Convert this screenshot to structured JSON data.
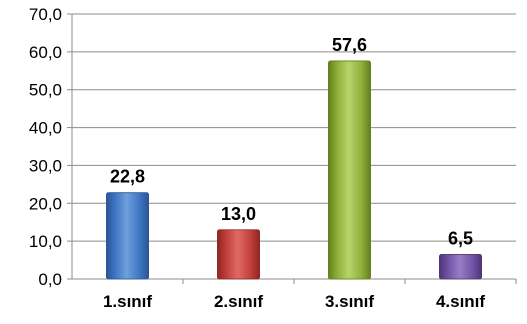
{
  "chart_data": {
    "type": "bar",
    "title": "",
    "xlabel": "",
    "ylabel": "",
    "categories": [
      "1.sınıf",
      "2.sınıf",
      "3.sınıf",
      "4.sınıf"
    ],
    "values": [
      22.8,
      13.0,
      57.6,
      6.5
    ],
    "data_labels": [
      "22,8",
      "13,0",
      "57,6",
      "6,5"
    ],
    "y_ticks": [
      "0,0",
      "10,0",
      "20,0",
      "30,0",
      "40,0",
      "50,0",
      "60,0",
      "70,0"
    ],
    "ylim": [
      0,
      70
    ],
    "y_tick_step": 10,
    "grid": true,
    "legend": "none",
    "colors": {
      "bars": [
        {
          "light": "#6f9fdc",
          "base": "#3f77c4",
          "dark": "#2a5596"
        },
        {
          "light": "#df6a65",
          "base": "#c3403b",
          "dark": "#8e2622"
        },
        {
          "light": "#b5d56a",
          "base": "#8fb13a",
          "dark": "#62801f"
        },
        {
          "light": "#9a7cc6",
          "base": "#7354a6",
          "dark": "#4e3577"
        }
      ],
      "grid": "#8c8c8c",
      "axis": "#8c8c8c"
    }
  }
}
